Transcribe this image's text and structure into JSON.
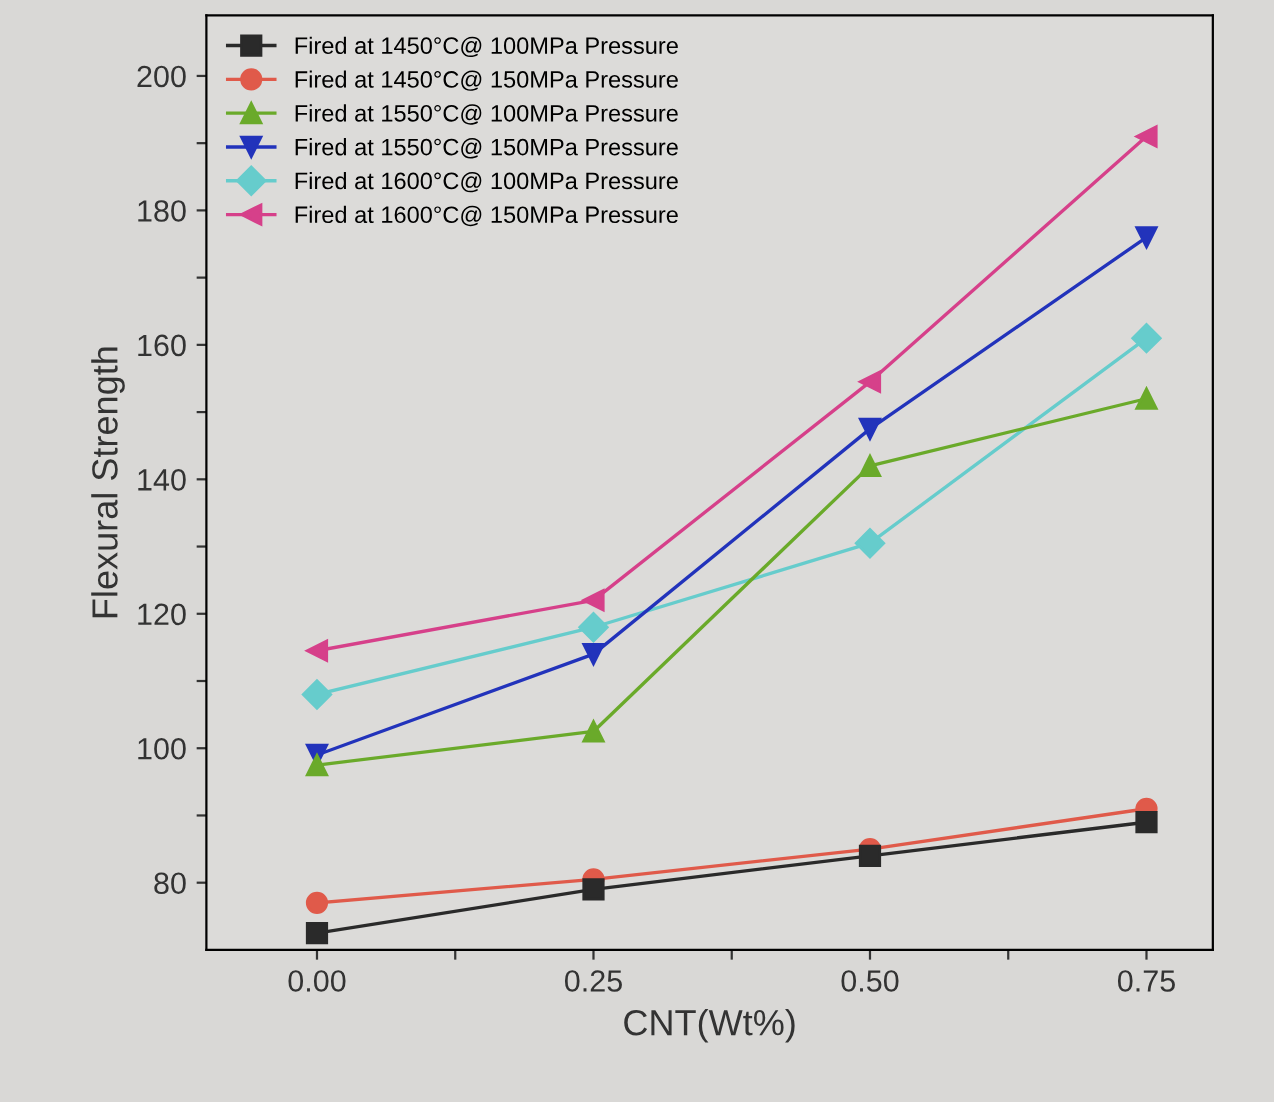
{
  "chart_data": {
    "type": "line",
    "xlabel": "CNT(Wt%)",
    "ylabel": "Flexural Strength",
    "x": [
      0.0,
      0.25,
      0.5,
      0.75
    ],
    "xlim": [
      -0.1,
      0.81
    ],
    "xticks": [
      {
        "value": 0.0,
        "label": "0.00"
      },
      {
        "value": 0.125,
        "label": null
      },
      {
        "value": 0.25,
        "label": "0.25"
      },
      {
        "value": 0.375,
        "label": null
      },
      {
        "value": 0.5,
        "label": "0.50"
      },
      {
        "value": 0.625,
        "label": null
      },
      {
        "value": 0.75,
        "label": "0.75"
      }
    ],
    "ylim": [
      70,
      209
    ],
    "yticks": [
      80,
      {
        "value": 90,
        "label": null
      },
      100,
      {
        "value": 110,
        "label": null
      },
      120,
      {
        "value": 130,
        "label": null
      },
      140,
      {
        "value": 150,
        "label": null
      },
      160,
      {
        "value": 170,
        "label": null
      },
      180,
      {
        "value": 190,
        "label": null
      },
      200
    ],
    "grid": false,
    "legend": "top left",
    "line_style": "solid",
    "series": [
      {
        "name": "Fired at 1450°C@ 100MPa Pressure",
        "color": "#2a2a2a",
        "marker": "square",
        "values": [
          72.5,
          79,
          84,
          89
        ]
      },
      {
        "name": "Fired at 1450°C@ 150MPa Pressure",
        "color": "#e05a4a",
        "marker": "circle",
        "values": [
          77,
          80.5,
          85,
          91
        ]
      },
      {
        "name": "Fired at 1550°C@ 100MPa Pressure",
        "color": "#6aaa2a",
        "marker": "triangle",
        "values": [
          97.5,
          102.5,
          142,
          152
        ]
      },
      {
        "name": "Fired at 1550°C@ 150MPa Pressure",
        "color": "#2233bb",
        "marker": "triangle_down",
        "values": [
          99,
          114,
          147.5,
          176
        ]
      },
      {
        "name": "Fired at 1600°C@ 100MPa Pressure",
        "color": "#66cccc",
        "marker": "diamond",
        "values": [
          108,
          118,
          130.5,
          161
        ]
      },
      {
        "name": "Fired at 1600°C@ 150MPa Pressure",
        "color": "#d6408a",
        "marker": "triangle_left",
        "values": [
          114.5,
          122,
          154.5,
          191
        ]
      }
    ]
  }
}
